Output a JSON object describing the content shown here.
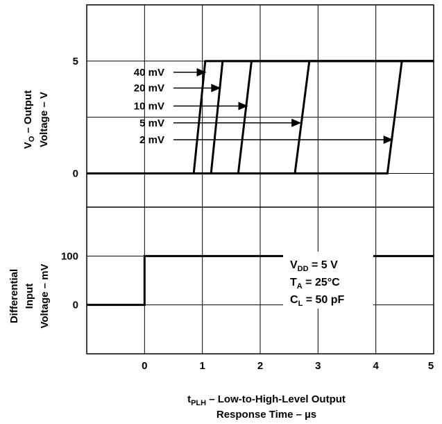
{
  "chart_data": [
    {
      "type": "line",
      "panel": "output",
      "ylabel_line1_main": "V",
      "ylabel_line1_sub": "O",
      "ylabel_line1_rest": " – Output",
      "ylabel_line2": "Voltage – V",
      "ylim": [
        -1.5,
        7.5
      ],
      "yticks": [
        {
          "v": 0,
          "label": "0"
        },
        {
          "v": 5,
          "label": "5"
        }
      ],
      "series": [
        {
          "name": "40 mV",
          "label": "40 mV",
          "x": [
            -1,
            0.85,
            1.05,
            1.2,
            5
          ],
          "y": [
            0,
            0,
            5,
            5,
            5
          ],
          "arrow_at": [
            1.07,
            4.5
          ]
        },
        {
          "name": "20 mV",
          "label": "20 mV",
          "x": [
            -1,
            1.15,
            1.35,
            1.55,
            5
          ],
          "y": [
            0,
            0,
            5,
            5,
            5
          ],
          "arrow_at": [
            1.32,
            3.8
          ]
        },
        {
          "name": "10 mV",
          "label": "10 mV",
          "x": [
            -1,
            1.62,
            1.85,
            2.0,
            5
          ],
          "y": [
            0,
            0,
            5,
            5,
            5
          ],
          "arrow_at": [
            1.79,
            3.0
          ]
        },
        {
          "name": "5 mV",
          "label": "5 mV",
          "x": [
            -1,
            2.6,
            2.85,
            3.0,
            5
          ],
          "y": [
            0,
            0,
            5,
            5,
            5
          ],
          "arrow_at": [
            2.71,
            2.25
          ]
        },
        {
          "name": "2 mV",
          "label": "2 mV",
          "x": [
            -1,
            4.2,
            4.45,
            4.6,
            5
          ],
          "y": [
            0,
            0,
            5,
            5,
            5
          ],
          "arrow_at": [
            4.3,
            1.5
          ]
        }
      ]
    },
    {
      "type": "line",
      "panel": "input",
      "ylabel_line1": "Differential",
      "ylabel_line2": "Input",
      "ylabel_line3": "Voltage – mV",
      "ylim": [
        -100,
        200
      ],
      "yticks": [
        {
          "v": 0,
          "label": "0"
        },
        {
          "v": 100,
          "label": "100"
        }
      ],
      "series": [
        {
          "x": [
            -1,
            0,
            0,
            5
          ],
          "y": [
            0,
            0,
            100,
            100
          ]
        }
      ]
    }
  ],
  "x_axis": {
    "xlim": [
      -1,
      5
    ],
    "ticks": [
      {
        "v": 0,
        "label": "0"
      },
      {
        "v": 1,
        "label": "1"
      },
      {
        "v": 2,
        "label": "2"
      },
      {
        "v": 3,
        "label": "3"
      },
      {
        "v": 4,
        "label": "4"
      },
      {
        "v": 5,
        "label": "5"
      }
    ],
    "xlabel_t": "t",
    "xlabel_sub": "PLH",
    "xlabel_rest": " – Low-to-High-Level Output",
    "xlabel_line2": "Response Time – µs"
  },
  "conditions": {
    "vdd_main": "V",
    "vdd_sub": "DD",
    "vdd_rest": " = 5 V",
    "ta_main": "T",
    "ta_sub": "A",
    "ta_rest": " = 25°C",
    "cl_main": "C",
    "cl_sub": "L",
    "cl_rest": " = 50 pF"
  },
  "grid": true
}
